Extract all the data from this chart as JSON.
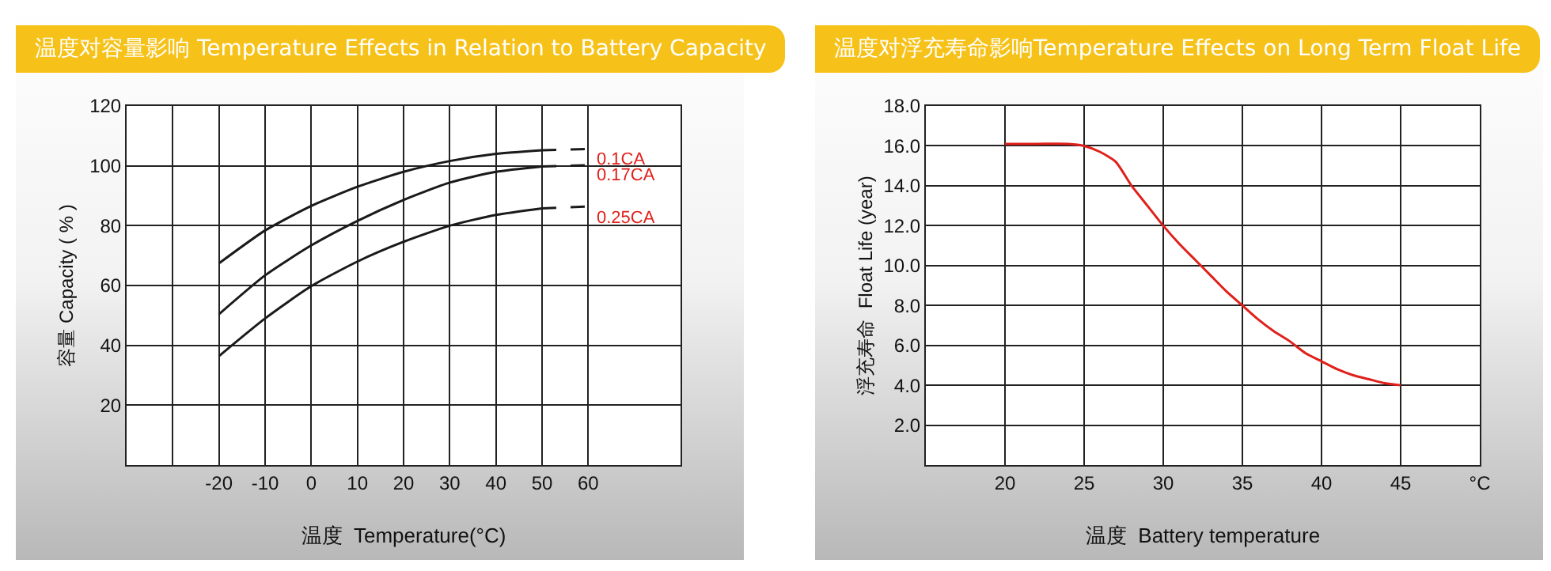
{
  "chart_data": [
    {
      "type": "line",
      "title": "温度对容量影响 Temperature Effects in Relation to Battery Capacity",
      "xlabel": "温度  Temperature(°C)",
      "ylabel": "容量 Capacity ( % )",
      "xlim": [
        -40,
        80
      ],
      "xticks": [
        {
          "value": -30,
          "label": null
        },
        -20,
        -10,
        0,
        10,
        20,
        30,
        40,
        50,
        60
      ],
      "ylim": [
        0,
        120
      ],
      "yticks": [
        20,
        40,
        60,
        80,
        100,
        120
      ],
      "grid": true,
      "legend": false,
      "marker": "none",
      "series": [
        {
          "color": "#1a1a1a",
          "x": [
            -20,
            -10,
            0,
            10,
            20,
            30,
            40,
            50
          ],
          "values": [
            67.4,
            78.4,
            86.6,
            93,
            98,
            101.6,
            104,
            105.2
          ]
        },
        {
          "color": "#1a1a1a",
          "x": [
            -20,
            -10,
            0,
            10,
            20,
            30,
            40,
            50
          ],
          "values": [
            50.4,
            63.4,
            73.4,
            81.6,
            88.6,
            94.4,
            98,
            99.8
          ]
        },
        {
          "color": "#1a1a1a",
          "x": [
            -20,
            -10,
            0,
            10,
            20,
            30,
            40,
            50
          ],
          "values": [
            36.4,
            49,
            59.8,
            68,
            74.6,
            80,
            83.6,
            85.8
          ]
        },
        {
          "name": "0.1CA",
          "color": "#1a1a1a",
          "line_style": "dashed",
          "x": [
            50,
            60
          ],
          "values": [
            105.2,
            105.6
          ]
        },
        {
          "name": "0.17CA",
          "color": "#1a1a1a",
          "line_style": "dashed",
          "x": [
            50,
            60
          ],
          "values": [
            99.8,
            100.2
          ]
        },
        {
          "name": "0.25CA",
          "color": "#1a1a1a",
          "line_style": "dashed",
          "x": [
            50,
            60
          ],
          "values": [
            85.8,
            86.4
          ]
        }
      ]
    },
    {
      "type": "line",
      "title": "温度对浮充寿命影响Temperature Effects on Long Term Float Life",
      "xlabel": "温度  Battery temperature",
      "ylabel": "浮充寿命  Float Life (year)",
      "xlim": [
        15,
        50
      ],
      "xticks": [
        20,
        25,
        30,
        35,
        40,
        45,
        {
          "value": 50,
          "label": "°C"
        }
      ],
      "ylim": [
        0,
        18
      ],
      "yticks": [
        {
          "value": 2,
          "label": "2.0"
        },
        {
          "value": 4,
          "label": "4.0"
        },
        {
          "value": 6,
          "label": "6.0"
        },
        {
          "value": 8,
          "label": "8.0"
        },
        {
          "value": 10,
          "label": "10.0"
        },
        {
          "value": 12,
          "label": "12.0"
        },
        {
          "value": 14,
          "label": "14.0"
        },
        {
          "value": 16,
          "label": "16.0"
        },
        {
          "value": 18,
          "label": "18.0"
        }
      ],
      "grid": true,
      "legend": false,
      "marker": "none",
      "series": [
        {
          "color": "#e0201b",
          "x": [
            20,
            22,
            24,
            25,
            26,
            27,
            28,
            29,
            30,
            31,
            32,
            33,
            34,
            35,
            36,
            37,
            38,
            39,
            40,
            41,
            42,
            43,
            44,
            45
          ],
          "values": [
            16.1,
            16.1,
            16.1,
            16.0,
            15.7,
            15.2,
            14.0,
            13.0,
            12.0,
            11.1,
            10.3,
            9.5,
            8.7,
            8.0,
            7.3,
            6.7,
            6.2,
            5.6,
            5.2,
            4.8,
            4.5,
            4.3,
            4.1,
            4.0
          ]
        }
      ]
    }
  ]
}
